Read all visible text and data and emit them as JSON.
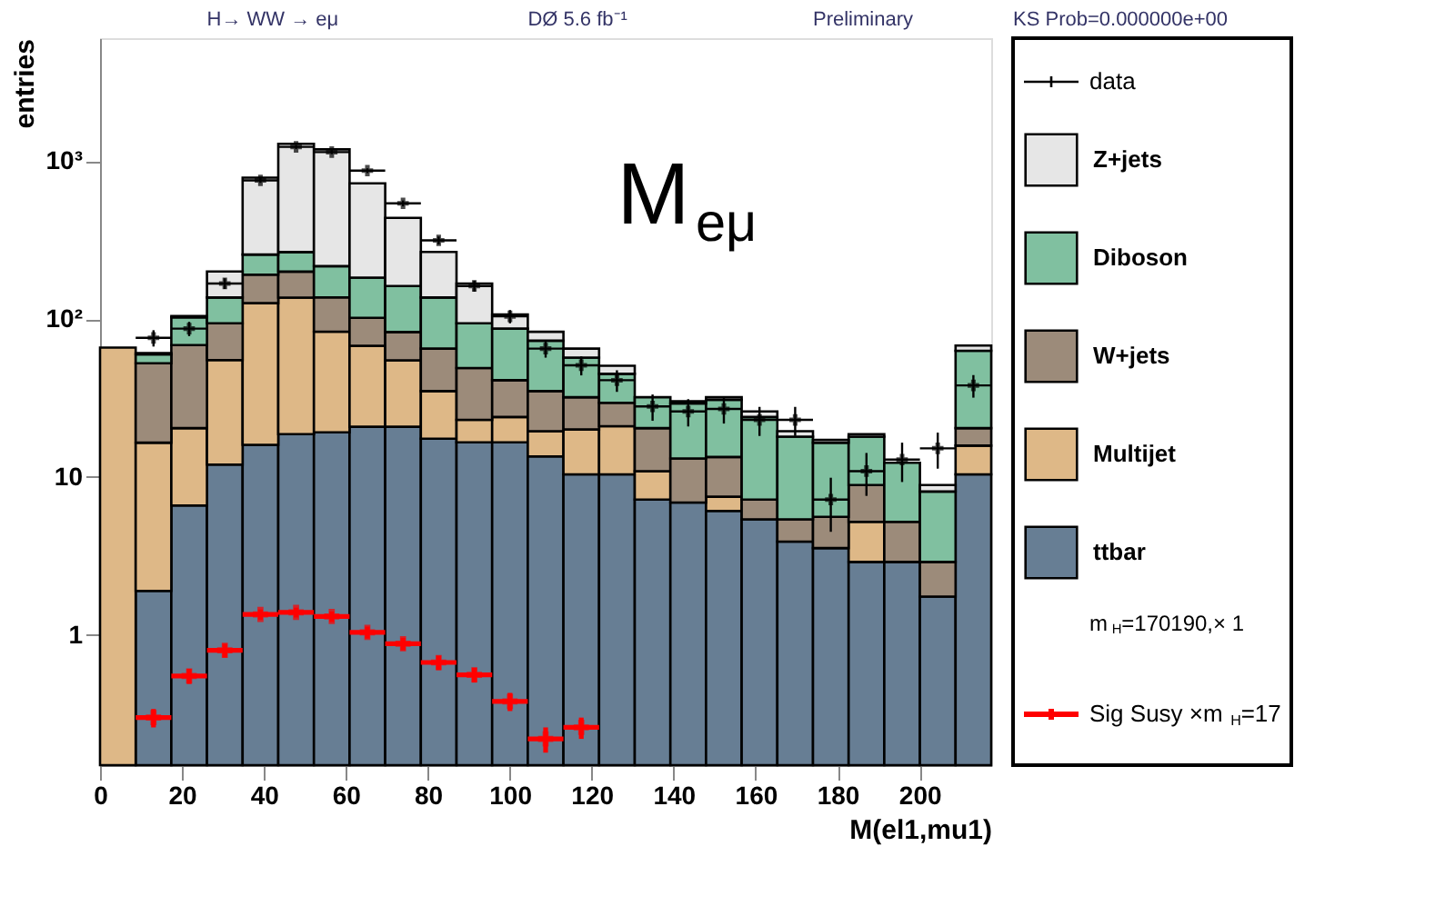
{
  "chart_data": {
    "type": "bar",
    "stacked": true,
    "log": "y",
    "grid": false,
    "legend": "right",
    "marker": "cross",
    "xlabel": "M(el1,mu1)",
    "ylabel": "entries",
    "xlim": [
      0,
      217.5
    ],
    "ylim": [
      0.15,
      6000
    ],
    "xticks": [
      0,
      20,
      40,
      60,
      80,
      100,
      120,
      140,
      160,
      180,
      200
    ],
    "yticks": [
      1,
      10,
      {
        "value": 100,
        "label": "10²"
      },
      {
        "value": 1000,
        "label": "10³"
      }
    ],
    "x": [
      4.35,
      13.05,
      21.75,
      30.45,
      39.15,
      47.85,
      56.55,
      65.25,
      73.95,
      82.65,
      91.35,
      100.05,
      108.75,
      117.45,
      126.15,
      134.85,
      143.55,
      152.25,
      160.95,
      169.65,
      178.35,
      187.05,
      195.75,
      204.45,
      213.15
    ],
    "annotations": [
      "H→ WW → eμ",
      "DØ 5.6 fb⁻¹",
      "Preliminary",
      "KS Prob=0.000000e+00",
      "M$_{eμ}$",
      "m$_{H}$=170190,× 1"
    ],
    "series": [
      {
        "name": "ttbar",
        "color": "#677e94",
        "values": [
          null,
          1.9,
          6.6,
          12,
          16,
          18.7,
          19.2,
          20.8,
          20.8,
          17.5,
          16.6,
          16.6,
          13.5,
          10.4,
          10.4,
          7.2,
          6.9,
          6.1,
          5.4,
          3.9,
          3.55,
          2.9,
          2.9,
          1.75,
          10.4
        ]
      },
      {
        "name": "Multijet",
        "color": "#deb887",
        "values": [
          66,
          14.6,
          13.8,
          43,
          110,
          118,
          64,
          47,
          34,
          17.5,
          6.4,
          7.4,
          6,
          9.6,
          10.6,
          3.7,
          null,
          1.4,
          null,
          null,
          null,
          2.3,
          null,
          null,
          5.4
        ]
      },
      {
        "name": "W+jets",
        "color": "#9c8b7a",
        "values": [
          null,
          36,
          48,
          39,
          65,
          63,
          54,
          34,
          28,
          30,
          26,
          17,
          15.5,
          12,
          8.5,
          9.5,
          6.2,
          5.9,
          1.8,
          1.5,
          2.05,
          3.7,
          2.3,
          1.15,
          4.6
        ]
      },
      {
        "name": "Diboson",
        "color": "#80c0a0",
        "values": [
          null,
          7.3,
          34,
          43,
          65,
          66,
          79,
          81,
          79,
          72,
          45,
          46,
          38,
          25,
          15.5,
          11.6,
          16.1,
          17.4,
          16.8,
          12.6,
          10.9,
          9.1,
          7.1,
          5.2,
          42.6
        ]
      },
      {
        "name": "Z+jets",
        "color": "#e6e6e6",
        "values": [
          null,
          1,
          2,
          63,
          530,
          1020,
          970,
          540,
          275,
          129,
          74,
          20,
          10,
          8,
          5.6,
          null,
          1,
          1.2,
          2,
          1.5,
          0.7,
          0.7,
          null,
          0.8,
          5
        ]
      },
      {
        "name": "data",
        "type": "scatter",
        "color": "#000000",
        "x": [
          13.05,
          21.75,
          30.45,
          39.15,
          47.85,
          56.55,
          65.25,
          73.95,
          82.65,
          91.35,
          100.05,
          108.75,
          117.45,
          126.15,
          134.85,
          143.55,
          152.25,
          160.95,
          169.65,
          178.35,
          187.05,
          195.75,
          204.45,
          213.15
        ],
        "values": [
          76,
          87,
          168,
          755,
          1230,
          1140,
          870,
          540,
          315,
          162,
          104,
          65,
          51,
          41,
          28,
          26,
          27,
          23,
          23,
          7.2,
          10.9,
          12.9,
          15.2,
          38
        ],
        "xerrors": [
          4.35,
          4.35,
          4.35,
          4.35,
          4.35,
          4.35,
          4.35,
          4.35,
          4.35,
          4.35,
          4.35,
          4.35,
          4.35,
          4.35,
          4.35,
          4.35,
          4.35,
          4.35,
          4.35,
          4.35,
          4.35,
          4.35,
          4.35,
          4.35
        ],
        "errors": [
          9,
          9,
          13,
          27,
          35,
          34,
          30,
          23,
          18,
          13,
          10,
          8,
          7,
          6.4,
          5.3,
          5.1,
          5.2,
          4.8,
          4.8,
          2.7,
          3.3,
          3.6,
          3.9,
          6.2
        ]
      },
      {
        "name": "Sig Susy ×m$_{H}$=17",
        "type": "scatter",
        "color": "#ff0000",
        "x": [
          13.05,
          21.75,
          30.45,
          39.15,
          47.85,
          56.55,
          65.25,
          73.95,
          82.65,
          91.35,
          100.05,
          108.75,
          117.45
        ],
        "values": [
          0.3,
          0.55,
          0.8,
          1.35,
          1.39,
          1.31,
          1.04,
          0.88,
          0.67,
          0.56,
          0.38,
          0.22,
          0.26
        ],
        "xerrors": [
          4.35,
          4.35,
          4.35,
          4.35,
          4.35,
          4.35,
          4.35,
          4.35,
          4.35,
          4.35,
          4.35,
          4.35,
          4.35
        ],
        "errors": [
          0.04,
          0.06,
          0.08,
          0.1,
          0.1,
          0.1,
          0.09,
          0.08,
          0.07,
          0.06,
          0.05,
          0.04,
          0.04
        ]
      }
    ]
  }
}
